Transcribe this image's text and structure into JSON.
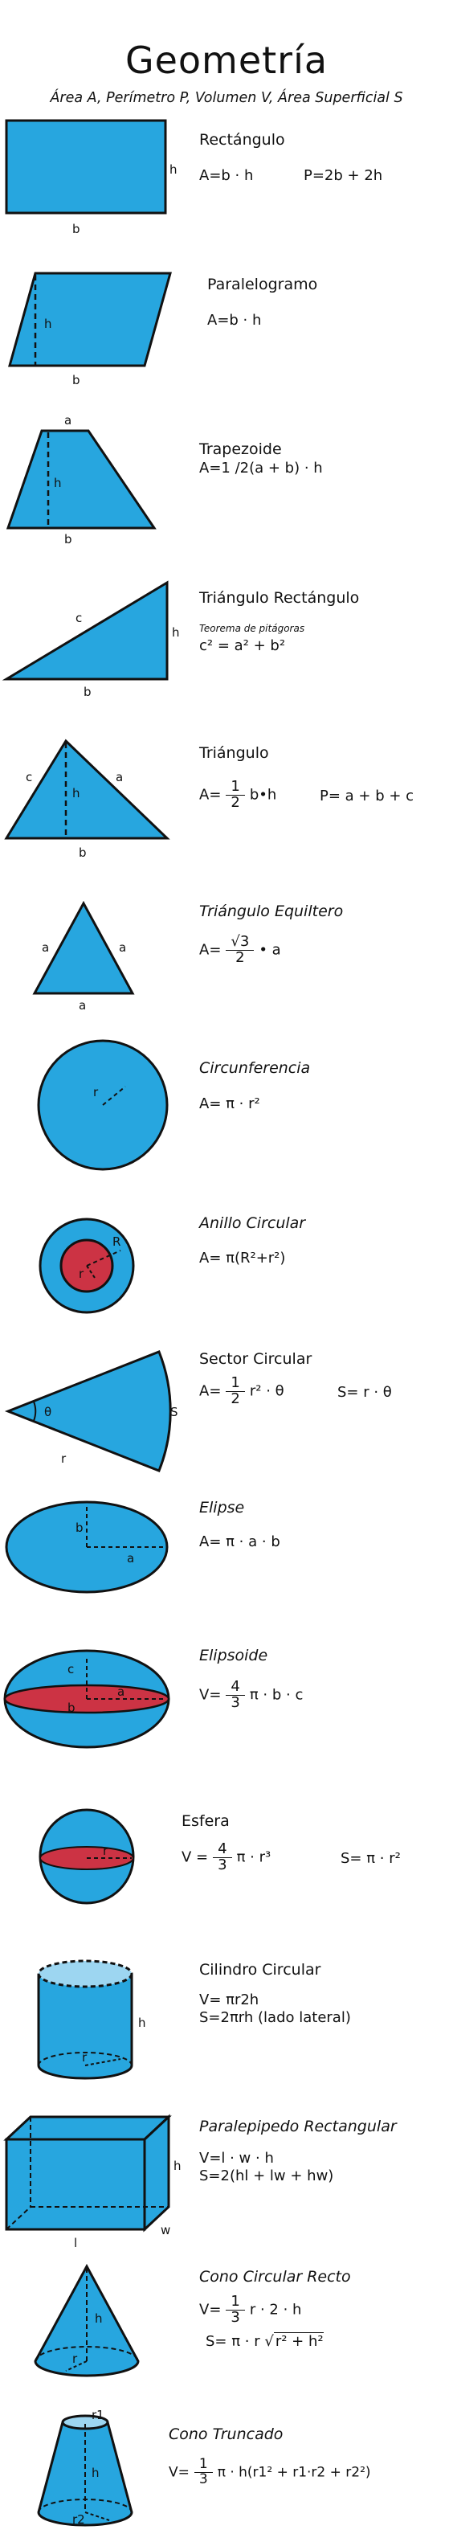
{
  "header": {
    "title": "Geometría",
    "subtitle": "Área A, Perímetro P, Volumen V, Área Superficial S"
  },
  "colors": {
    "fill": "#27a6df",
    "red": "#cc3344",
    "light": "#9dd6f1",
    "stroke": "#111111"
  },
  "shapes": [
    {
      "name": "Rectángulo",
      "labels": [
        "h",
        "b"
      ],
      "f1": "A=b · h",
      "f2": "P=2b + 2h"
    },
    {
      "name": "Paralelogramo",
      "labels": [
        "h",
        "b"
      ],
      "f1": "A=b · h"
    },
    {
      "name": "Trapezoide",
      "labels": [
        "a",
        "h",
        "b"
      ],
      "f1": "A=1 /2(a + b) · h"
    },
    {
      "name": "Triángulo Rectángulo",
      "labels": [
        "c",
        "h",
        "b"
      ],
      "note": "Teorema de pitágoras",
      "f1": "c² = a² + b²"
    },
    {
      "name": "Triángulo",
      "labels": [
        "c",
        "h",
        "a",
        "b"
      ],
      "f1_a": "A=",
      "f1_n": "1",
      "f1_d": "2",
      "f1_b": "b•h",
      "f2": "P= a + b + c"
    },
    {
      "name": "Triángulo Equiltero",
      "labels": [
        "a",
        "a",
        "a"
      ],
      "f1_a": "A=",
      "f1_n": "√3",
      "f1_d": "2",
      "f1_b": "• a"
    },
    {
      "name": "Circunferencia",
      "labels": [
        "r"
      ],
      "f1": "A= π · r²"
    },
    {
      "name": "Anillo Circular",
      "labels": [
        "R",
        "r"
      ],
      "f1": "A= π(R²+r²)"
    },
    {
      "name": "Sector Circular",
      "labels": [
        "θ",
        "S",
        "r"
      ],
      "f1_a": "A=",
      "f1_n": "1",
      "f1_d": "2",
      "f1_b": "r² · θ",
      "f2": "S= r · θ"
    },
    {
      "name": "Elipse",
      "labels": [
        "b",
        "a"
      ],
      "f1": "A= π · a · b"
    },
    {
      "name": "Elipsoide",
      "labels": [
        "c",
        "a",
        "b"
      ],
      "f1_a": "V=",
      "f1_n": "4",
      "f1_d": "3",
      "f1_b": "π · b · c"
    },
    {
      "name": "Esfera",
      "labels": [
        "r"
      ],
      "f1_a": "V =",
      "f1_n": "4",
      "f1_d": "3",
      "f1_b": "π · r³",
      "f2": "S= π · r²"
    },
    {
      "name": "Cilindro Circular",
      "labels": [
        "h",
        "r"
      ],
      "f1": "V= πr2h",
      "f2": "S=2πrh (lado lateral)"
    },
    {
      "name": "Paralepipedo Rectangular",
      "labels": [
        "h",
        "w",
        "l"
      ],
      "f1": "V=l · w · h",
      "f2": "S=2(hl + lw + hw)"
    },
    {
      "name": "Cono Circular Recto",
      "labels": [
        "h",
        "r"
      ],
      "f1_a": "V=",
      "f1_n": "1",
      "f1_d": "3",
      "f1_b": "r · 2 · h",
      "f2_a": "S=  π · r",
      "f2_r": "r² + h²"
    },
    {
      "name": "Cono Truncado",
      "labels": [
        "r1",
        "h",
        "r2"
      ],
      "f1_a": "V=",
      "f1_n": "1",
      "f1_d": "3",
      "f1_b": "π · h(r1² + r1·r2 + r2²)"
    }
  ]
}
